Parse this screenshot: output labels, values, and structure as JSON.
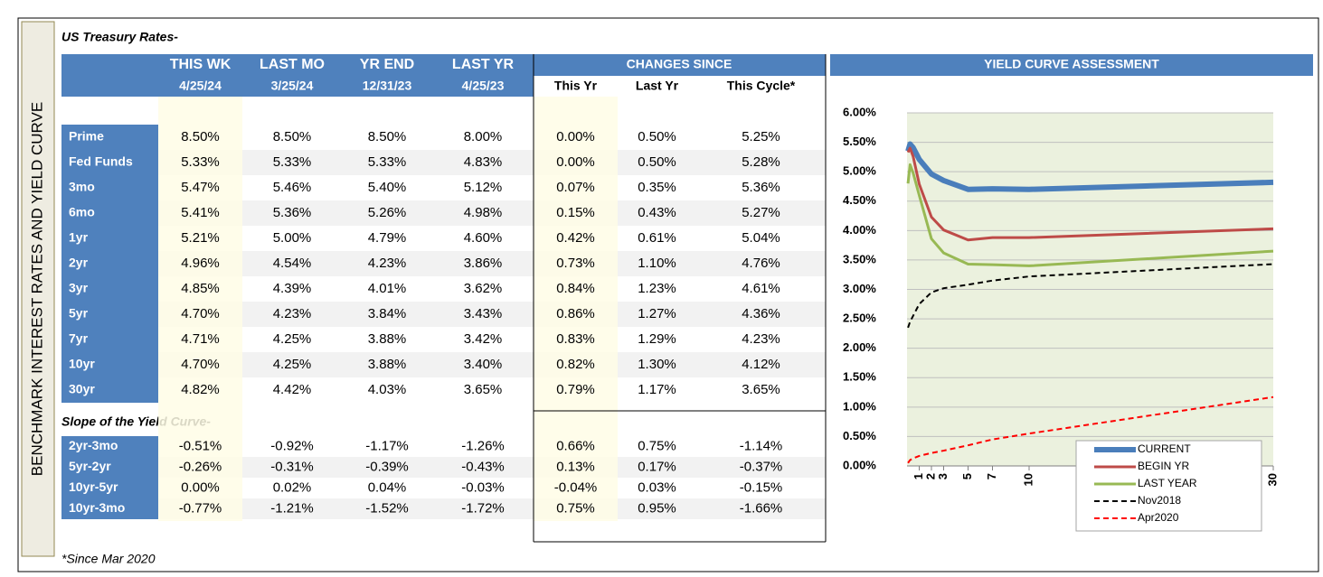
{
  "side_title": "BENCHMARK INTEREST RATES AND YIELD CURVE",
  "footnote": "*Since Mar 2020",
  "table": {
    "title": "US Treasury Rates-",
    "columns": [
      "THIS WK",
      "LAST MO",
      "YR END",
      "LAST YR"
    ],
    "dates": [
      "4/25/24",
      "3/25/24",
      "12/31/23",
      "4/25/23"
    ],
    "changes_header": "CHANGES SINCE",
    "change_columns": [
      "This Yr",
      "Last Yr",
      "This Cycle*"
    ],
    "rows": [
      [
        "Prime",
        "8.50%",
        "8.50%",
        "8.50%",
        "8.00%",
        "0.00%",
        "0.50%",
        "5.25%"
      ],
      [
        "Fed Funds",
        "5.33%",
        "5.33%",
        "5.33%",
        "4.83%",
        "0.00%",
        "0.50%",
        "5.28%"
      ],
      [
        "3mo",
        "5.47%",
        "5.46%",
        "5.40%",
        "5.12%",
        "0.07%",
        "0.35%",
        "5.36%"
      ],
      [
        "6mo",
        "5.41%",
        "5.36%",
        "5.26%",
        "4.98%",
        "0.15%",
        "0.43%",
        "5.27%"
      ],
      [
        "1yr",
        "5.21%",
        "5.00%",
        "4.79%",
        "4.60%",
        "0.42%",
        "0.61%",
        "5.04%"
      ],
      [
        "2yr",
        "4.96%",
        "4.54%",
        "4.23%",
        "3.86%",
        "0.73%",
        "1.10%",
        "4.76%"
      ],
      [
        "3yr",
        "4.85%",
        "4.39%",
        "4.01%",
        "3.62%",
        "0.84%",
        "1.23%",
        "4.61%"
      ],
      [
        "5yr",
        "4.70%",
        "4.23%",
        "3.84%",
        "3.43%",
        "0.86%",
        "1.27%",
        "4.36%"
      ],
      [
        "7yr",
        "4.71%",
        "4.25%",
        "3.88%",
        "3.42%",
        "0.83%",
        "1.29%",
        "4.23%"
      ],
      [
        "10yr",
        "4.70%",
        "4.25%",
        "3.88%",
        "3.40%",
        "0.82%",
        "1.30%",
        "4.12%"
      ],
      [
        "30yr",
        "4.82%",
        "4.42%",
        "4.03%",
        "3.65%",
        "0.79%",
        "1.17%",
        "3.65%"
      ]
    ],
    "slope_title": "Slope of the Yield Curve-",
    "slope_rows": [
      [
        "2yr-3mo",
        "-0.51%",
        "-0.92%",
        "-1.17%",
        "-1.26%",
        "0.66%",
        "0.75%",
        "-1.14%"
      ],
      [
        "5yr-2yr",
        "-0.26%",
        "-0.31%",
        "-0.39%",
        "-0.43%",
        "0.13%",
        "0.17%",
        "-0.37%"
      ],
      [
        "10yr-5yr",
        "0.00%",
        "0.02%",
        "0.04%",
        "-0.03%",
        "-0.04%",
        "0.03%",
        "-0.15%"
      ],
      [
        "10yr-3mo",
        "-0.77%",
        "-1.21%",
        "-1.52%",
        "-1.72%",
        "0.75%",
        "0.95%",
        "-1.66%"
      ]
    ]
  },
  "chart_data": {
    "type": "line",
    "title": "YIELD CURVE ASSESSMENT",
    "x": [
      0.08,
      0.25,
      0.5,
      1,
      2,
      3,
      5,
      7,
      10,
      30
    ],
    "xlim": [
      0,
      30
    ],
    "xticks": [
      1,
      2,
      3,
      5,
      7,
      10,
      30
    ],
    "ylim": [
      0,
      6
    ],
    "yticks": [
      {
        "value": 0,
        "label": "0.00%"
      },
      {
        "value": 0.5,
        "label": "0.50%"
      },
      {
        "value": 1,
        "label": "1.00%"
      },
      {
        "value": 1.5,
        "label": "1.50%"
      },
      {
        "value": 2,
        "label": "2.00%"
      },
      {
        "value": 2.5,
        "label": "2.50%"
      },
      {
        "value": 3,
        "label": "3.00%"
      },
      {
        "value": 3.5,
        "label": "3.50%"
      },
      {
        "value": 4,
        "label": "4.00%"
      },
      {
        "value": 4.5,
        "label": "4.50%"
      },
      {
        "value": 5,
        "label": "5.00%"
      },
      {
        "value": 5.5,
        "label": "5.50%"
      },
      {
        "value": 6,
        "label": "6.00%"
      }
    ],
    "grid": true,
    "legend": "lower right",
    "series": [
      {
        "name": "CURRENT",
        "color": "#4a7ebb",
        "width": 6,
        "dashed": false,
        "values": [
          5.35,
          5.47,
          5.41,
          5.21,
          4.96,
          4.85,
          4.7,
          4.71,
          4.7,
          4.82
        ]
      },
      {
        "name": "BEGIN YR",
        "color": "#be4b48",
        "width": 3,
        "dashed": false,
        "values": [
          5.33,
          5.4,
          5.26,
          4.79,
          4.23,
          4.01,
          3.84,
          3.88,
          3.88,
          4.03
        ]
      },
      {
        "name": "LAST YEAR",
        "color": "#98b954",
        "width": 3,
        "dashed": false,
        "values": [
          4.8,
          5.12,
          4.98,
          4.6,
          3.86,
          3.62,
          3.43,
          3.42,
          3.4,
          3.65
        ]
      },
      {
        "name": "Nov2018",
        "color": "#000000",
        "width": 2,
        "dashed": true,
        "values": [
          2.35,
          2.45,
          2.55,
          2.75,
          2.95,
          3.02,
          3.08,
          3.15,
          3.22,
          3.43
        ]
      },
      {
        "name": "Apr2020",
        "color": "#ff0000",
        "width": 2,
        "dashed": true,
        "values": [
          0.05,
          0.1,
          0.13,
          0.17,
          0.22,
          0.26,
          0.35,
          0.45,
          0.55,
          1.17
        ]
      }
    ]
  }
}
